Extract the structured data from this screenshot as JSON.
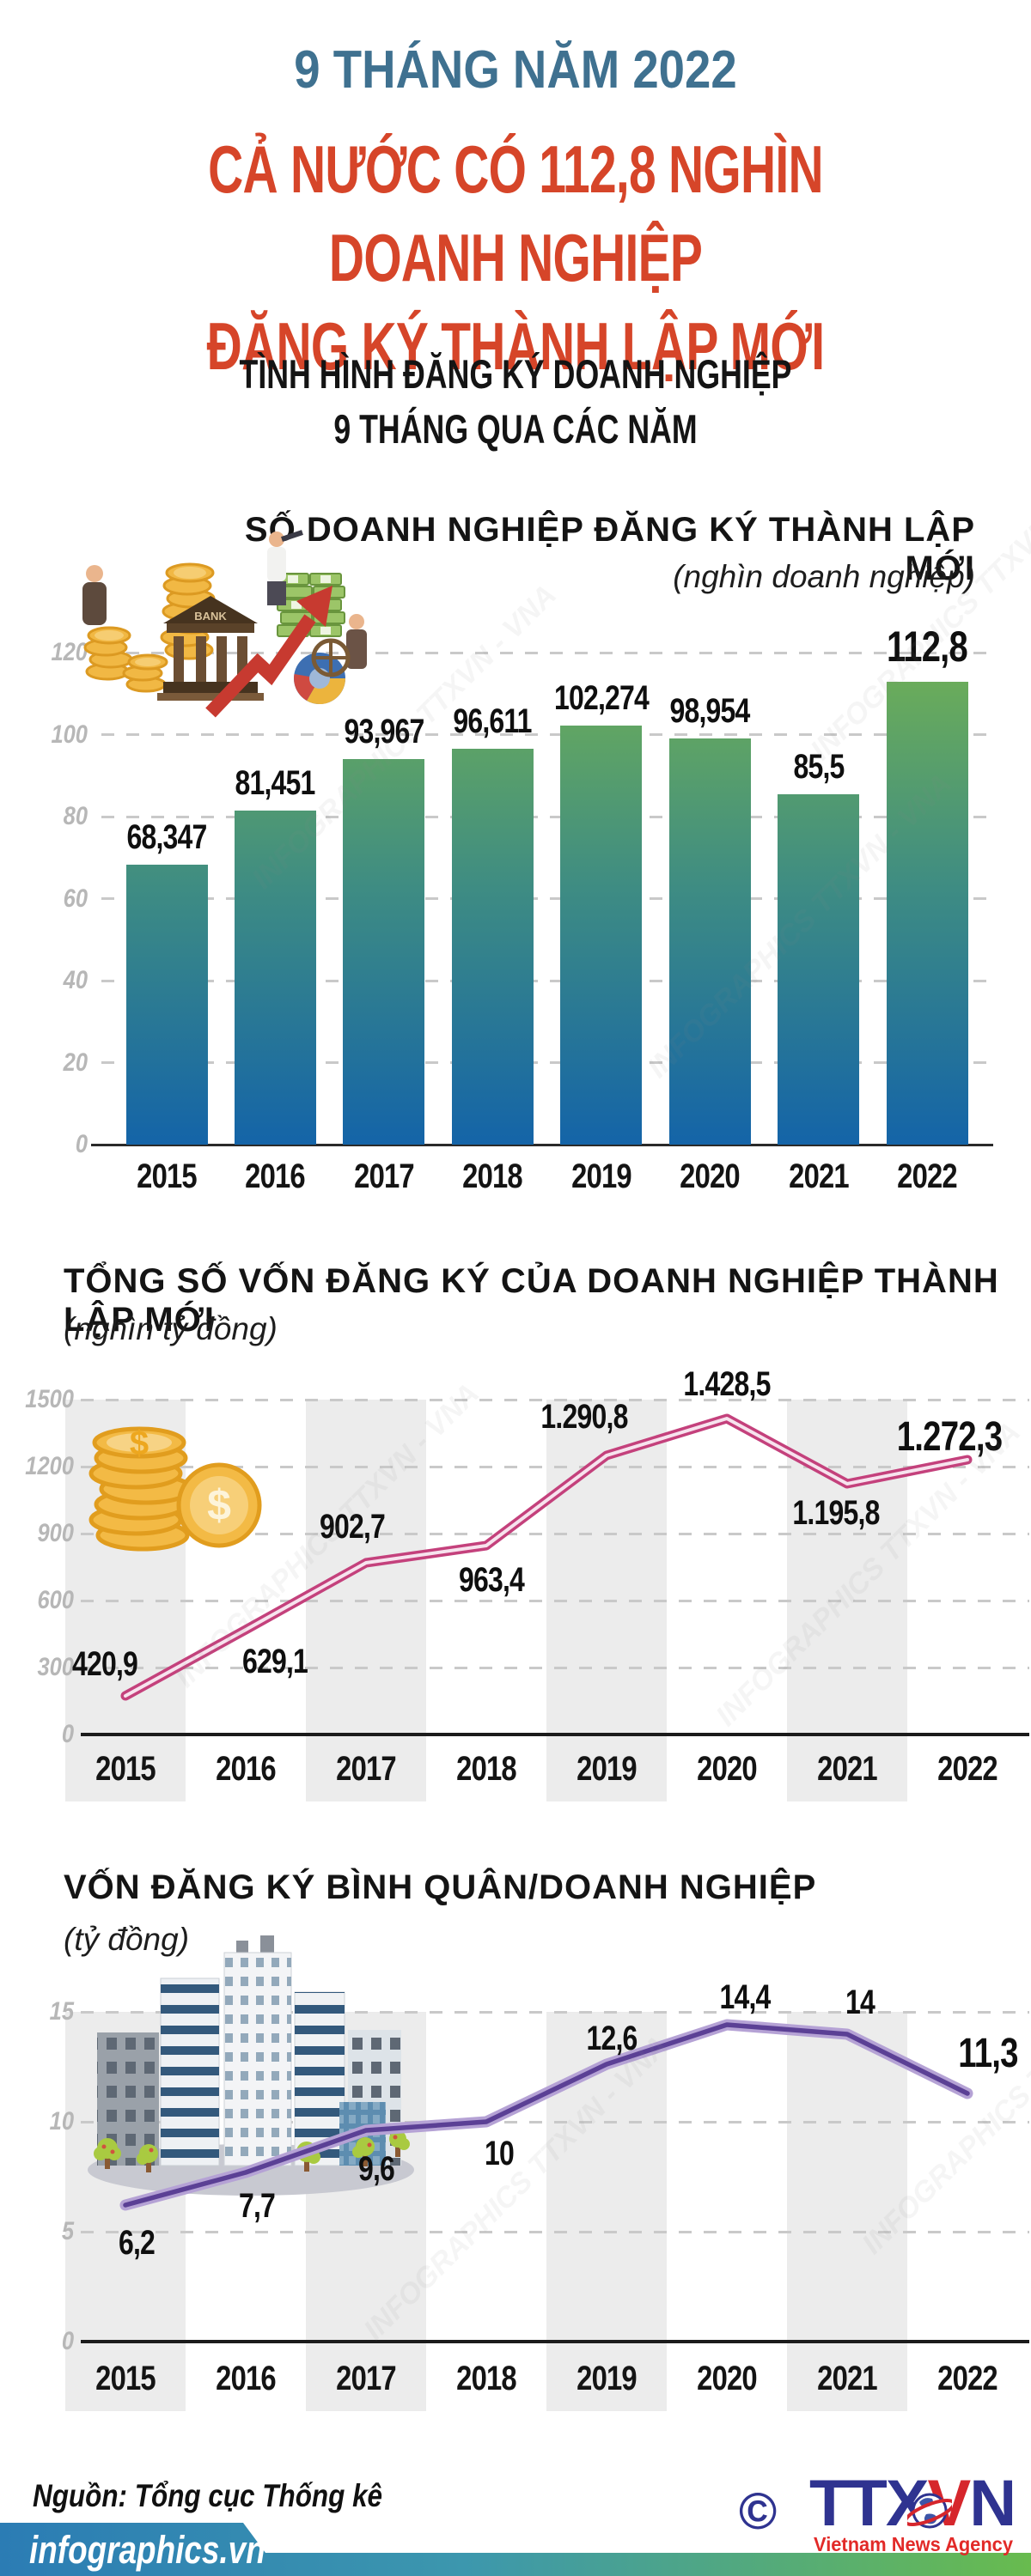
{
  "header": {
    "period": "9 THÁNG NĂM 2022",
    "title_line1": "CẢ NƯỚC CÓ 112,8 NGHÌN DOANH NGHIỆP",
    "title_line2": "ĐĂNG KÝ THÀNH LẬP MỚI",
    "section_line1": "TÌNH HÌNH ĐĂNG KÝ DOANH NGHIỆP",
    "section_line2": "9 THÁNG QUA CÁC NĂM"
  },
  "watermark_text": "INFOGRAPHICS  TTXVN - VNA",
  "years": [
    "2015",
    "2016",
    "2017",
    "2018",
    "2019",
    "2020",
    "2021",
    "2022"
  ],
  "chart_data": [
    {
      "id": "new-enterprises",
      "type": "bar",
      "title": "SỐ DOANH NGHIỆP ĐĂNG KÝ THÀNH LẬP MỚI",
      "unit": "(nghìn doanh nghiệp)",
      "categories": [
        "2015",
        "2016",
        "2017",
        "2018",
        "2019",
        "2020",
        "2021",
        "2022"
      ],
      "values": [
        68.347,
        81.451,
        93.967,
        96.611,
        102.274,
        98.954,
        85.5,
        112.8
      ],
      "value_labels": [
        "68,347",
        "81,451",
        "93,967",
        "96,611",
        "102,274",
        "98,954",
        "85,5",
        "112,8"
      ],
      "ylim": [
        0,
        120
      ],
      "yticks": [
        0,
        20,
        40,
        60,
        80,
        100,
        120
      ],
      "grid": "dashed-horizontal",
      "bar_gradient_top": "#70b055",
      "bar_gradient_bottom": "#1464a8"
    },
    {
      "id": "registered-capital",
      "type": "line",
      "title": "TỔNG SỐ VỐN ĐĂNG KÝ CỦA DOANH NGHIỆP THÀNH LẬP MỚI",
      "unit": "(nghìn tỷ đồng)",
      "categories": [
        "2015",
        "2016",
        "2017",
        "2018",
        "2019",
        "2020",
        "2021",
        "2022"
      ],
      "values": [
        420.9,
        629.1,
        902.7,
        963.4,
        1290.8,
        1428.5,
        1195.8,
        1272.3
      ],
      "value_labels": [
        "420,9",
        "629,1",
        "902,7",
        "963,4",
        "1.290,8",
        "1.428,5",
        "1.195,8",
        "1.272,3"
      ],
      "ylim": [
        0,
        1500
      ],
      "yticks": [
        0,
        300,
        600,
        900,
        1200,
        1500
      ],
      "grid": "dashed-horizontal",
      "shaded_columns": [
        "2015",
        "2017",
        "2019",
        "2021"
      ],
      "line_color": "#c4417c"
    },
    {
      "id": "avg-capital-per-enterprise",
      "type": "line",
      "title": "VỐN ĐĂNG KÝ BÌNH QUÂN/DOANH NGHIỆP",
      "unit": "(tỷ đồng)",
      "categories": [
        "2015",
        "2016",
        "2017",
        "2018",
        "2019",
        "2020",
        "2021",
        "2022"
      ],
      "values": [
        6.2,
        7.7,
        9.6,
        10,
        12.6,
        14.4,
        14,
        11.3
      ],
      "value_labels": [
        "6,2",
        "7,7",
        "9,6",
        "10",
        "12,6",
        "14,4",
        "14",
        "11,3"
      ],
      "ylim": [
        0,
        15
      ],
      "yticks": [
        0,
        5,
        10,
        15
      ],
      "grid": "dashed-horizontal",
      "shaded_columns": [
        "2015",
        "2017",
        "2019",
        "2021"
      ],
      "line_color": "#5b4095"
    }
  ],
  "footer": {
    "source": "Nguồn: Tổng cục Thống kê",
    "copyright_symbol": "©",
    "logo_ttx": "TTX",
    "logo_v": "V",
    "logo_n": "N",
    "agency_name": "Vietnam News Agency",
    "site": "infographics.vn"
  },
  "colors": {
    "accent_teal": "#3f7190",
    "accent_red": "#d64529",
    "bar_top": "#70b055",
    "bar_bottom": "#1464a8",
    "capital_line": "#c4417c",
    "avg_line": "#5b4095",
    "column_band": "#ececec",
    "axis_label_gray": "#b7b7b7"
  }
}
